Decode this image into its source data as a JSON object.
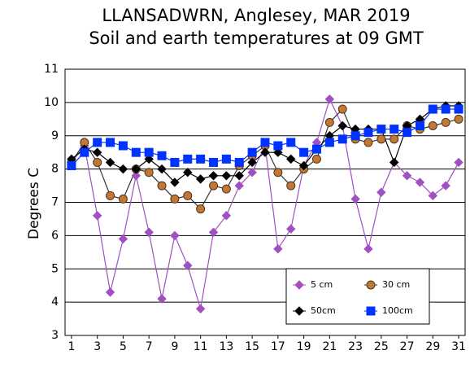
{
  "chart_data": {
    "type": "line",
    "title": "LLANSADWRN, Anglesey, MAR 2019",
    "subtitle": "Soil and earth temperatures at 09 GMT",
    "y_label": "Degrees C",
    "x": [
      1,
      2,
      3,
      4,
      5,
      6,
      7,
      8,
      9,
      10,
      11,
      12,
      13,
      14,
      15,
      16,
      17,
      18,
      19,
      20,
      21,
      22,
      23,
      24,
      25,
      26,
      27,
      28,
      29,
      30,
      31
    ],
    "xlim": [
      0.5,
      31.5
    ],
    "xticks": [
      1,
      3,
      5,
      7,
      9,
      11,
      13,
      15,
      17,
      19,
      21,
      23,
      25,
      27,
      29,
      31
    ],
    "ylim": [
      3,
      11
    ],
    "yticks": [
      3,
      4,
      5,
      6,
      7,
      8,
      9,
      10,
      11
    ],
    "grid": true,
    "legend": "lower right",
    "series": [
      {
        "name": "5 cm",
        "color": "#a050c0",
        "marker": "diamond",
        "values": [
          8.2,
          8.7,
          6.6,
          4.3,
          5.9,
          7.8,
          6.1,
          4.1,
          6.0,
          5.1,
          3.8,
          6.1,
          6.6,
          7.5,
          7.9,
          8.7,
          5.6,
          6.2,
          8.1,
          8.8,
          10.1,
          9.3,
          7.1,
          5.6,
          7.3,
          8.2,
          7.8,
          7.6,
          7.2,
          7.5,
          8.2
        ]
      },
      {
        "name": "30 cm",
        "color": "#c07838",
        "marker": "circle",
        "values": [
          8.2,
          8.8,
          8.2,
          7.2,
          7.1,
          8.0,
          7.9,
          7.5,
          7.1,
          7.2,
          6.8,
          7.5,
          7.4,
          8.1,
          8.4,
          8.7,
          7.9,
          7.5,
          8.0,
          8.3,
          9.4,
          9.8,
          8.9,
          8.8,
          8.9,
          8.9,
          9.3,
          9.2,
          9.3,
          9.4,
          9.5
        ]
      },
      {
        "name": "50cm",
        "color": "#000000",
        "marker": "diamond",
        "values": [
          8.3,
          8.6,
          8.5,
          8.2,
          8.0,
          8.0,
          8.3,
          8.0,
          7.6,
          7.9,
          7.7,
          7.8,
          7.8,
          7.8,
          8.2,
          8.5,
          8.5,
          8.3,
          8.1,
          8.6,
          9.0,
          9.3,
          9.2,
          9.2,
          9.2,
          8.2,
          9.3,
          9.5,
          9.8,
          9.9,
          9.9
        ]
      },
      {
        "name": "100cm",
        "color": "#0033ff",
        "marker": "square",
        "values": [
          8.1,
          8.5,
          8.8,
          8.8,
          8.7,
          8.5,
          8.5,
          8.4,
          8.2,
          8.3,
          8.3,
          8.2,
          8.3,
          8.2,
          8.5,
          8.8,
          8.7,
          8.8,
          8.5,
          8.6,
          8.8,
          8.9,
          9.0,
          9.1,
          9.2,
          9.2,
          9.1,
          9.3,
          9.8,
          9.8,
          9.8
        ]
      }
    ]
  }
}
